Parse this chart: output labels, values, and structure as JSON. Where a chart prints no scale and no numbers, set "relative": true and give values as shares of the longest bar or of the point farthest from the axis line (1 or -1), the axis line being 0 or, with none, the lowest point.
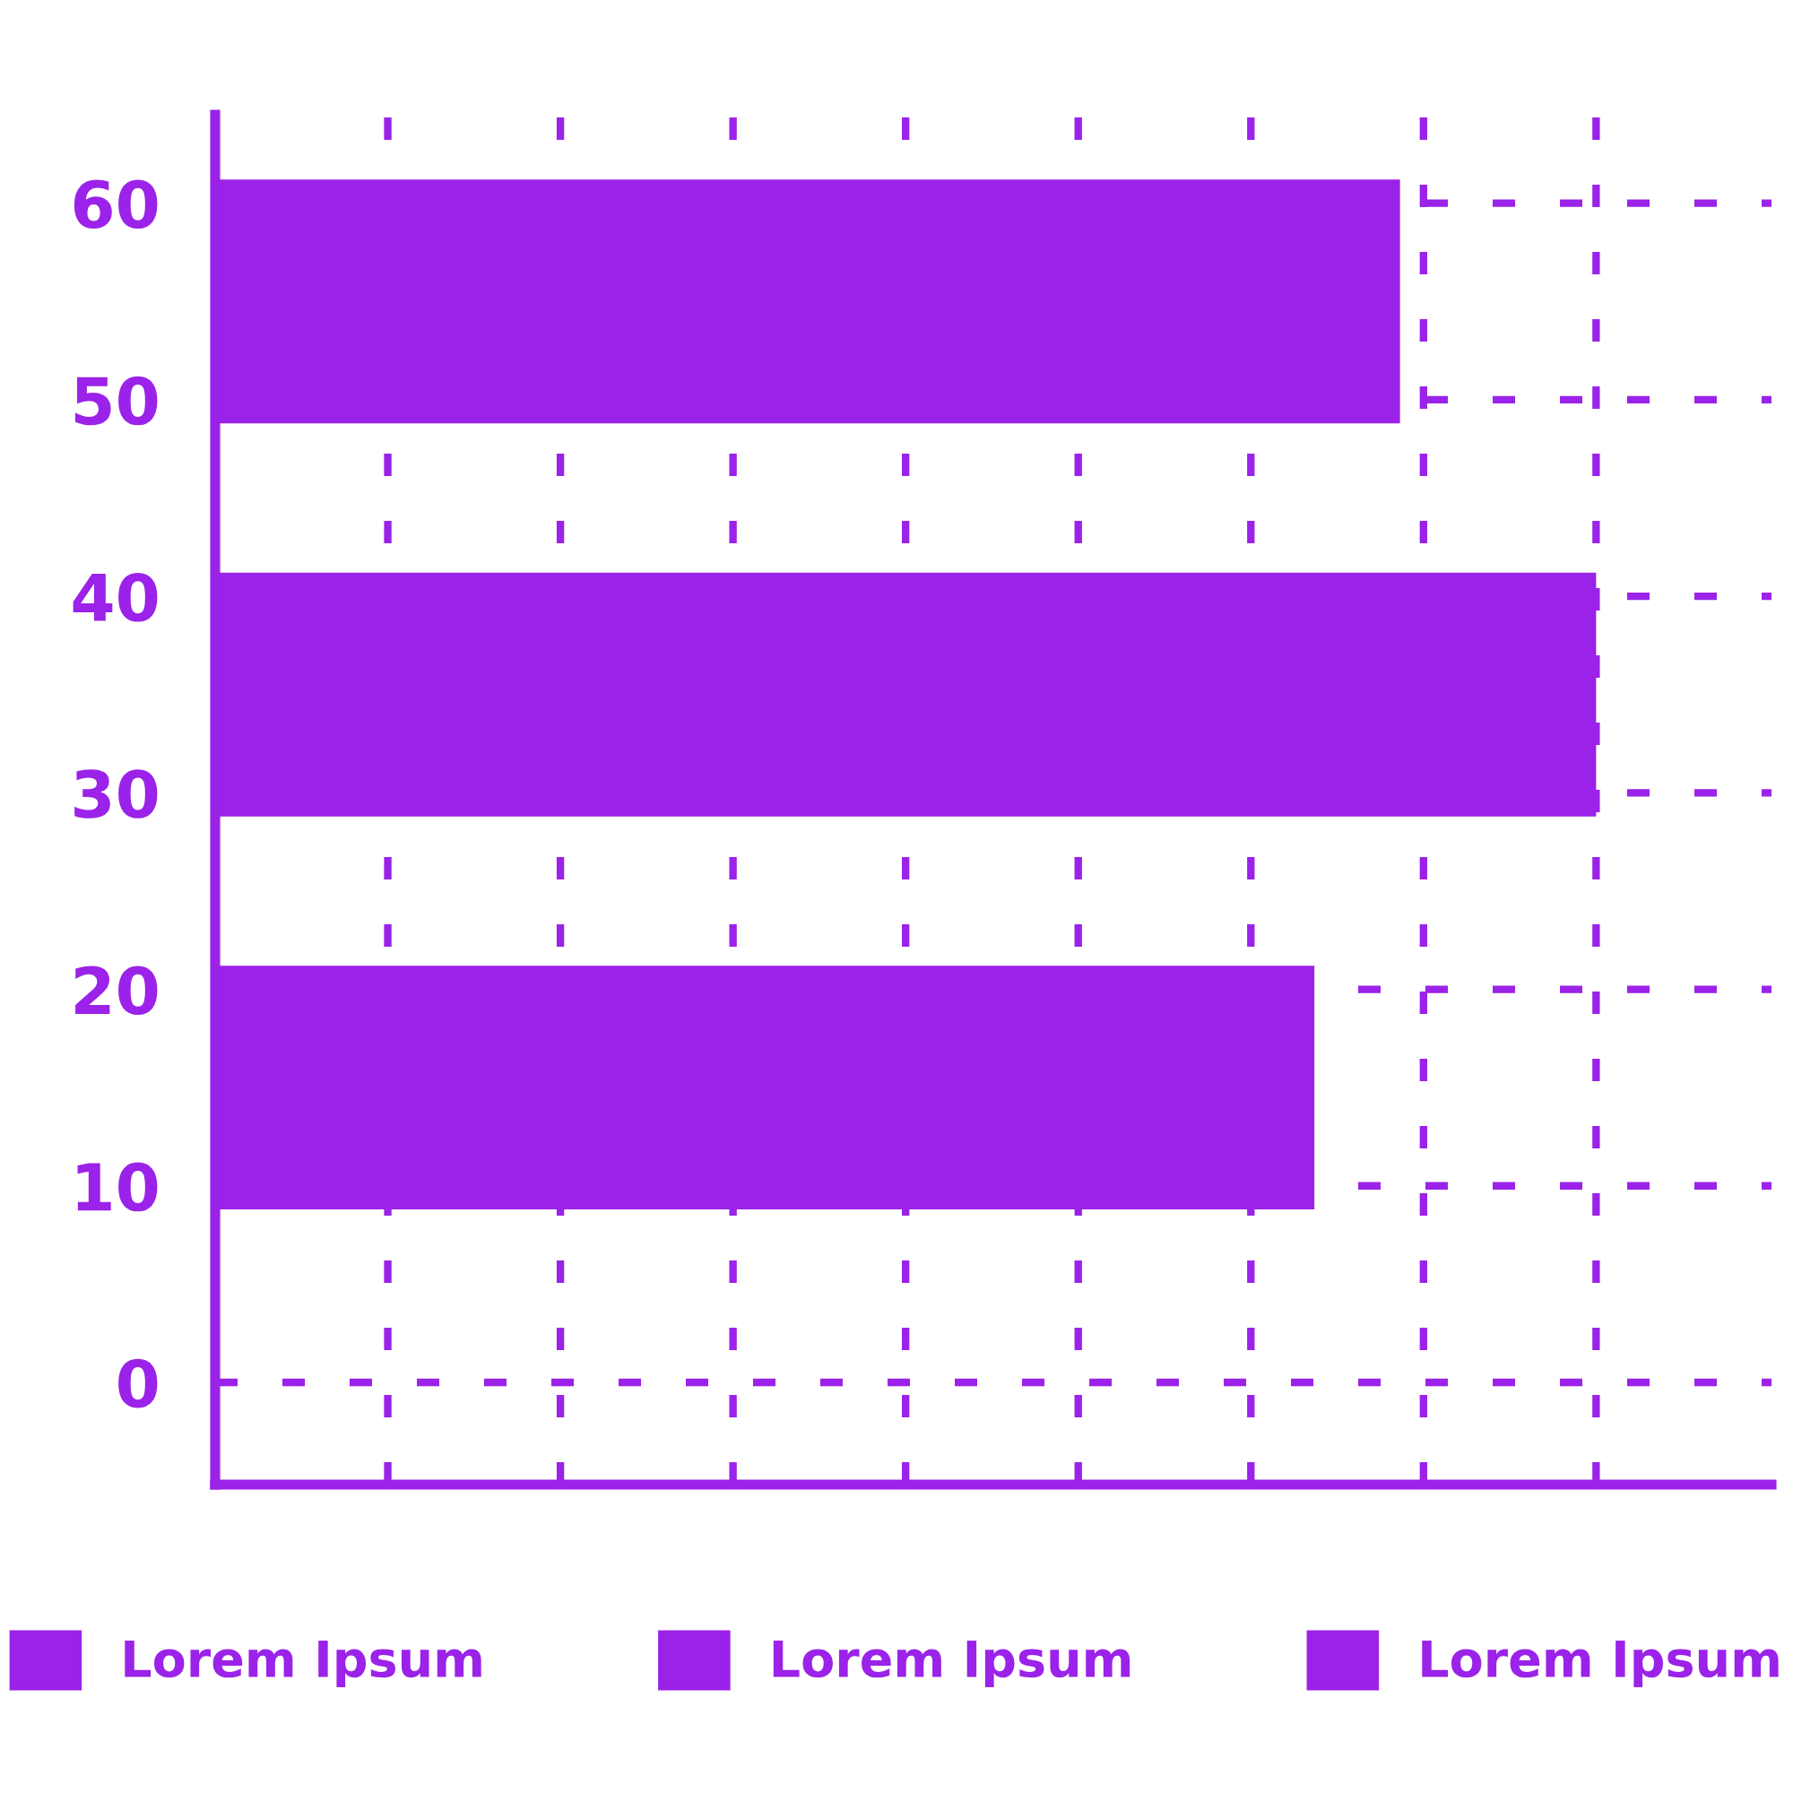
{
  "chart_data": {
    "type": "bar",
    "orientation": "horizontal",
    "relative": true,
    "x": [
      55,
      35,
      15
    ],
    "series": [
      {
        "name": "Lorem Ipsum",
        "color": "#9b22e8",
        "values": [
          0.858,
          null,
          null
        ]
      },
      {
        "name": "Lorem Ipsum",
        "color": "#9b22e8",
        "values": [
          null,
          1,
          null
        ]
      },
      {
        "name": "Lorem Ipsum",
        "color": "#9b22e8",
        "values": [
          null,
          null,
          0.796
        ]
      }
    ],
    "ylim": [
      -5.2,
      64.5
    ],
    "yticks": [
      0,
      10,
      20,
      30,
      40,
      50,
      60
    ],
    "grid": true,
    "legend": "bottom",
    "tick_labels": "y"
  }
}
